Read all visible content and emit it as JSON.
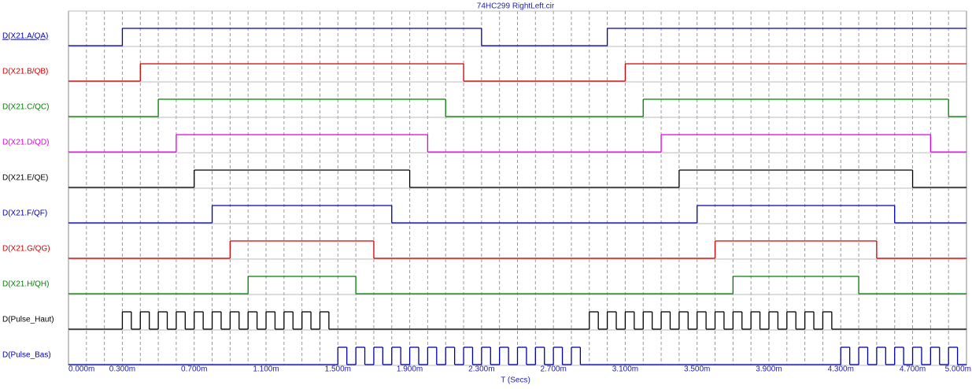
{
  "chart_data": {
    "type": "digital",
    "title": "74HC299 RightLeft.cir",
    "x_label": "T (Secs)",
    "xlim": [
      0,
      5
    ],
    "xticks": [
      {
        "value": 0,
        "label": "0.000m"
      },
      {
        "value": 0.3,
        "label": "0.300m"
      },
      {
        "value": 0.7,
        "label": "0.700m"
      },
      {
        "value": 1.1,
        "label": "1.100m"
      },
      {
        "value": 1.5,
        "label": "1.500m"
      },
      {
        "value": 1.9,
        "label": "1.900m"
      },
      {
        "value": 2.3,
        "label": "2.300m"
      },
      {
        "value": 2.7,
        "label": "2.700m"
      },
      {
        "value": 3.1,
        "label": "3.100m"
      },
      {
        "value": 3.5,
        "label": "3.500m"
      },
      {
        "value": 3.9,
        "label": "3.900m"
      },
      {
        "value": 4.3,
        "label": "4.300m"
      },
      {
        "value": 4.7,
        "label": "4.700m"
      },
      {
        "value": 5,
        "label": "5.000m"
      }
    ],
    "x_minor_ticks": [
      0.1,
      0.2,
      0.4,
      0.5,
      0.6,
      0.8,
      0.9,
      1.0,
      1.2,
      1.3,
      1.4,
      1.6,
      1.7,
      1.8,
      2.0,
      2.1,
      2.2,
      2.4,
      2.5,
      2.6,
      2.8,
      2.9,
      3.0,
      3.2,
      3.3,
      3.4,
      3.6,
      3.7,
      3.8,
      4.0,
      4.1,
      4.2,
      4.4,
      4.5,
      4.6,
      4.8,
      4.9
    ],
    "grid": true,
    "series": [
      {
        "name": "D(X21.A/QA)",
        "color": "#0000b0",
        "x": [
          0,
          0.3,
          2.3,
          3.0
        ],
        "values": [
          0,
          1,
          0,
          1
        ]
      },
      {
        "name": "D(X21.B/QB)",
        "color": "#d00000",
        "x": [
          0,
          0.4,
          2.2,
          3.1
        ],
        "values": [
          0,
          1,
          0,
          1
        ]
      },
      {
        "name": "D(X21.C/QC)",
        "color": "#008000",
        "x": [
          0,
          0.5,
          2.1,
          3.2,
          4.9
        ],
        "values": [
          0,
          1,
          0,
          1,
          0
        ]
      },
      {
        "name": "D(X21.D/QD)",
        "color": "#e000e0",
        "x": [
          0,
          0.6,
          2.0,
          3.3,
          4.8
        ],
        "values": [
          0,
          1,
          0,
          1,
          0
        ]
      },
      {
        "name": "D(X21.E/QE)",
        "color": "#000000",
        "x": [
          0,
          0.7,
          1.9,
          3.4,
          4.7
        ],
        "values": [
          0,
          1,
          0,
          1,
          0
        ]
      },
      {
        "name": "D(X21.F/QF)",
        "color": "#0000b0",
        "x": [
          0,
          0.8,
          1.8,
          3.5,
          4.6
        ],
        "values": [
          0,
          1,
          0,
          1,
          0
        ]
      },
      {
        "name": "D(X21.G/QG)",
        "color": "#d00000",
        "x": [
          0,
          0.9,
          1.7,
          3.6,
          4.5
        ],
        "values": [
          0,
          1,
          0,
          1,
          0
        ]
      },
      {
        "name": "D(X21.H/QH)",
        "color": "#008000",
        "x": [
          0,
          1.0,
          1.6,
          3.7,
          4.4
        ],
        "values": [
          0,
          1,
          0,
          1,
          0
        ]
      },
      {
        "name": "D(Pulse_Haut)",
        "color": "#000000",
        "x": [
          0,
          0.3,
          0.35,
          0.4,
          0.45,
          0.5,
          0.55,
          0.6,
          0.65,
          0.7,
          0.75,
          0.8,
          0.85,
          0.9,
          0.95,
          1.0,
          1.05,
          1.1,
          1.15,
          1.2,
          1.25,
          1.3,
          1.35,
          1.4,
          1.45,
          2.9,
          2.95,
          3.0,
          3.05,
          3.1,
          3.15,
          3.2,
          3.25,
          3.3,
          3.35,
          3.4,
          3.45,
          3.5,
          3.55,
          3.6,
          3.65,
          3.7,
          3.75,
          3.8,
          3.85,
          3.9,
          3.95,
          4.0,
          4.05,
          4.1,
          4.15,
          4.2,
          4.25
        ],
        "values": [
          0,
          1,
          0,
          1,
          0,
          1,
          0,
          1,
          0,
          1,
          0,
          1,
          0,
          1,
          0,
          1,
          0,
          1,
          0,
          1,
          0,
          1,
          0,
          1,
          0,
          1,
          0,
          1,
          0,
          1,
          0,
          1,
          0,
          1,
          0,
          1,
          0,
          1,
          0,
          1,
          0,
          1,
          0,
          1,
          0,
          1,
          0,
          1,
          0,
          1,
          0,
          1,
          0
        ]
      },
      {
        "name": "D(Pulse_Bas)",
        "color": "#0000b0",
        "x": [
          0,
          1.5,
          1.55,
          1.6,
          1.65,
          1.7,
          1.75,
          1.8,
          1.85,
          1.9,
          1.95,
          2.0,
          2.05,
          2.1,
          2.15,
          2.2,
          2.25,
          2.3,
          2.35,
          2.4,
          2.45,
          2.5,
          2.55,
          2.6,
          2.65,
          2.7,
          2.75,
          2.8,
          2.85,
          4.3,
          4.35,
          4.4,
          4.45,
          4.5,
          4.55,
          4.6,
          4.65,
          4.7,
          4.75,
          4.8,
          4.85,
          4.9,
          4.95
        ],
        "values": [
          0,
          1,
          0,
          1,
          0,
          1,
          0,
          1,
          0,
          1,
          0,
          1,
          0,
          1,
          0,
          1,
          0,
          1,
          0,
          1,
          0,
          1,
          0,
          1,
          0,
          1,
          0,
          1,
          0,
          1,
          0,
          1,
          0,
          1,
          0,
          1,
          0,
          1,
          0,
          1,
          0,
          1,
          0
        ]
      }
    ]
  }
}
